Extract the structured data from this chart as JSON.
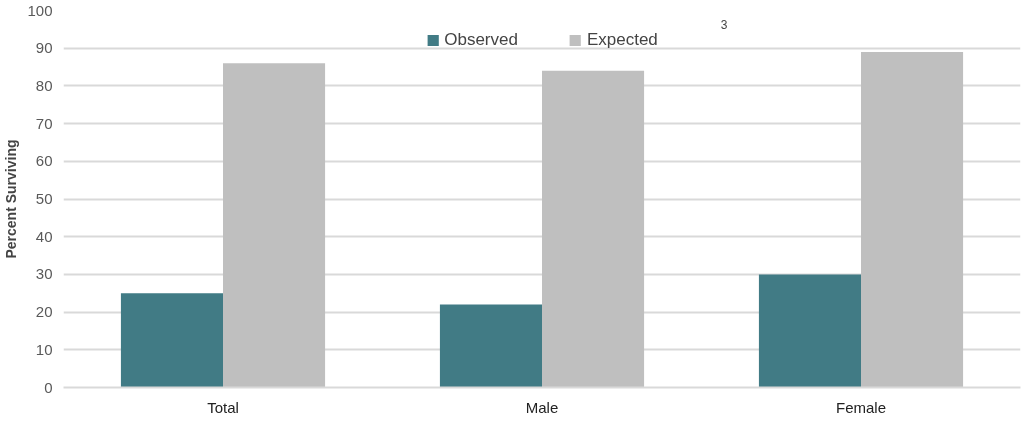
{
  "chart_data": {
    "type": "bar",
    "ylabel": "Percent Surviving",
    "categories": [
      "Total",
      "Male",
      "Female"
    ],
    "series": [
      {
        "name": "Observed",
        "color": "#417b85",
        "values": [
          25,
          22,
          30
        ]
      },
      {
        "name": "Expected",
        "color": "#bfbfbf",
        "values": [
          86,
          84,
          89
        ]
      }
    ],
    "ylim": [
      0,
      100
    ],
    "yticks": [
      0,
      10,
      20,
      30,
      40,
      50,
      60,
      70,
      80,
      90,
      100
    ],
    "grid": "y",
    "legend": "top",
    "annotations": [
      "3"
    ]
  }
}
